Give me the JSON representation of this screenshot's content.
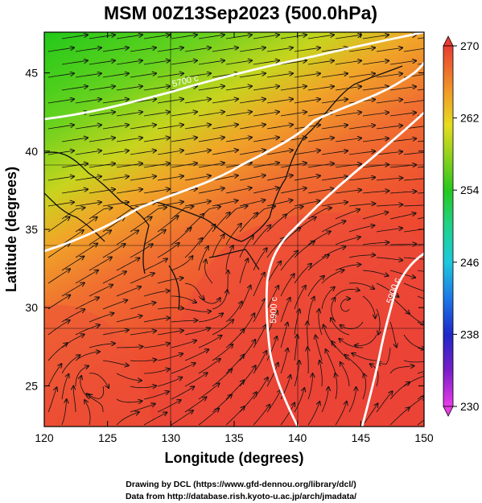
{
  "title": "MSM 00Z13Sep2023 (500.0hPa)",
  "xlabel": "Longitude (degrees)",
  "ylabel": "Latitude  (degrees)",
  "x_ticks": [
    "120",
    "125",
    "130",
    "135",
    "140",
    "145",
    "150"
  ],
  "y_ticks": [
    "25",
    "30",
    "35",
    "40",
    "45"
  ],
  "x_range": [
    120,
    150
  ],
  "y_range": [
    22.4,
    47.6
  ],
  "colorbar": {
    "ticks": [
      "270",
      "262",
      "254",
      "246",
      "238",
      "230"
    ],
    "min": 230,
    "max": 270
  },
  "contour_labels": [
    "5700 c",
    "5900 c",
    "5900 c"
  ],
  "footer_line1": "Drawing by DCL (https://www.gfd-dennou.org/library/dcl/)",
  "footer_line2": "Data from http://database.rish.kyoto-u.ac.jp/arch/jmadata/",
  "colors": {
    "cold_green": "#3cc81e",
    "mid_yellow": "#c8d21e",
    "warm_orange": "#f07828",
    "hot_red": "#e83a32",
    "contour_white": "#ffffff"
  }
}
